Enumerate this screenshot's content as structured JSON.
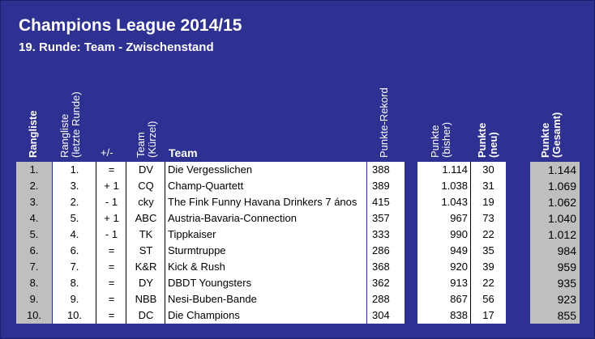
{
  "title": "Champions League 2014/15",
  "subtitle": "19. Runde: Team - Zwischenstand",
  "headers": {
    "rangliste": "Rangliste",
    "rangliste_letzte_1": "Rangliste",
    "rangliste_letzte_2": "(letzte Runde)",
    "plusminus": "+/-",
    "team_kurzel_1": "Team",
    "team_kurzel_2": "(Kürzel)",
    "team": "Team",
    "punkte_rekord": "Punkte-Rekord",
    "punkte_bisher_1": "Punkte",
    "punkte_bisher_2": "(bisher)",
    "punkte_neu_1": "Punkte",
    "punkte_neu_2": "(neu)",
    "punkte_gesamt_1": "Punkte",
    "punkte_gesamt_2": "(Gesamt)"
  },
  "rows": [
    {
      "rank": "1.",
      "prev": "1.",
      "change": "=",
      "code": "DV",
      "team": "Die Vergesslichen",
      "record": "388",
      "bisher": "1.114",
      "neu": "30",
      "gesamt": "1.144"
    },
    {
      "rank": "2.",
      "prev": "3.",
      "change": "+ 1",
      "code": "CQ",
      "team": "Champ-Quartett",
      "record": "389",
      "bisher": "1.038",
      "neu": "31",
      "gesamt": "1.069"
    },
    {
      "rank": "3.",
      "prev": "2.",
      "change": "- 1",
      "code": "cky",
      "team": "The Fink Funny Havana Drinkers 7 ános",
      "record": "415",
      "bisher": "1.043",
      "neu": "19",
      "gesamt": "1.062"
    },
    {
      "rank": "4.",
      "prev": "5.",
      "change": "+ 1",
      "code": "ABC",
      "team": "Austria-Bavaria-Connection",
      "record": "357",
      "bisher": "967",
      "neu": "73",
      "gesamt": "1.040"
    },
    {
      "rank": "5.",
      "prev": "4.",
      "change": "- 1",
      "code": "TK",
      "team": "Tippkaiser",
      "record": "333",
      "bisher": "990",
      "neu": "22",
      "gesamt": "1.012"
    },
    {
      "rank": "6.",
      "prev": "6.",
      "change": "=",
      "code": "ST",
      "team": "Sturmtruppe",
      "record": "286",
      "bisher": "949",
      "neu": "35",
      "gesamt": "984"
    },
    {
      "rank": "7.",
      "prev": "7.",
      "change": "=",
      "code": "K&R",
      "team": "Kick & Rush",
      "record": "368",
      "bisher": "920",
      "neu": "39",
      "gesamt": "959"
    },
    {
      "rank": "8.",
      "prev": "8.",
      "change": "=",
      "code": "DY",
      "team": "DBDT Youngsters",
      "record": "362",
      "bisher": "913",
      "neu": "22",
      "gesamt": "935"
    },
    {
      "rank": "9.",
      "prev": "9.",
      "change": "=",
      "code": "NBB",
      "team": "Nesi-Buben-Bande",
      "record": "288",
      "bisher": "867",
      "neu": "56",
      "gesamt": "923"
    },
    {
      "rank": "10.",
      "prev": "10.",
      "change": "=",
      "code": "DC",
      "team": "Die Champions",
      "record": "304",
      "bisher": "838",
      "neu": "17",
      "gesamt": "855"
    }
  ]
}
